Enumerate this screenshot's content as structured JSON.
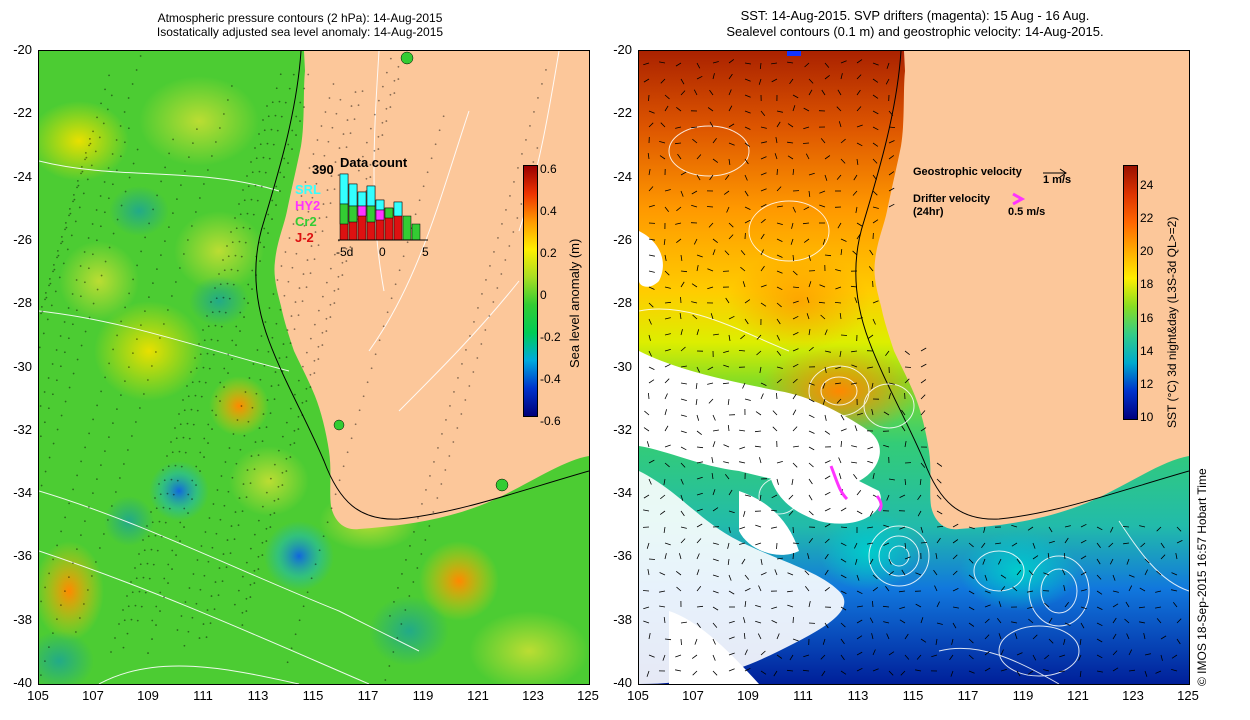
{
  "left_panel": {
    "title_line1": "Atmospheric pressure contours (2 hPa): 14-Aug-2015",
    "title_line2": "Isostatically adjusted sea level anomaly: 14-Aug-2015",
    "y_ticks": [
      "-20",
      "-22",
      "-24",
      "-26",
      "-28",
      "-30",
      "-32",
      "-34",
      "-36",
      "-38",
      "-40"
    ],
    "x_ticks": [
      "105",
      "107",
      "109",
      "111",
      "113",
      "115",
      "117",
      "119",
      "121",
      "123",
      "125"
    ],
    "colorbar": {
      "label": "Sea level anomaly (m)",
      "ticks": [
        "0.6",
        "0.4",
        "0.2",
        "0",
        "-0.2",
        "-0.4",
        "-0.6"
      ],
      "range": [
        -0.6,
        0.6
      ]
    },
    "data_count": {
      "total": "390",
      "title": "Data count",
      "missions": [
        {
          "name": "SRL",
          "color": "#33ffff"
        },
        {
          "name": "HY2",
          "color": "#ff33ff"
        },
        {
          "name": "Cr2",
          "color": "#33cc33"
        },
        {
          "name": "J-2",
          "color": "#dd1111"
        }
      ],
      "x_ticks": [
        "-5d",
        "0",
        "5"
      ]
    }
  },
  "right_panel": {
    "title_line1": "SST: 14-Aug-2015. SVP drifters (magenta): 15 Aug - 16 Aug.",
    "title_line2": "Sealevel contours (0.1 m) and geostrophic velocity: 14-Aug-2015.",
    "y_ticks": [
      "-20",
      "-22",
      "-24",
      "-26",
      "-28",
      "-30",
      "-32",
      "-34",
      "-36",
      "-38",
      "-40"
    ],
    "x_ticks": [
      "105",
      "107",
      "109",
      "111",
      "113",
      "115",
      "117",
      "119",
      "121",
      "123",
      "125"
    ],
    "legend": {
      "geostrophic_label": "Geostrophic velocity",
      "geostrophic_scale": "1 m/s",
      "drifter_label": "Drifter velocity",
      "drifter_sub": "(24hr)",
      "drifter_scale": "0.5 m/s"
    },
    "colorbar": {
      "label": "SST (°C) 3d night&day (L3S-3d QL>=2)",
      "ticks": [
        "24",
        "22",
        "20",
        "18",
        "16",
        "14",
        "12",
        "10"
      ],
      "range": [
        10,
        25
      ]
    }
  },
  "credit": "© IMOS 18-Sep-2015 16:57 Hobart Time",
  "colors": {
    "land": "#fcc79a",
    "sla_gradient": [
      "#00007a",
      "#0033cc",
      "#00aadd",
      "#00cc55",
      "#33cc33",
      "#aade22",
      "#ffee00",
      "#ff9900",
      "#ee3300",
      "#990000"
    ],
    "sst_gradient": [
      "#000080",
      "#0033cc",
      "#00aacc",
      "#33cc88",
      "#88dd22",
      "#ffee00",
      "#ffaa00",
      "#ff6600",
      "#dd3300",
      "#991100"
    ]
  }
}
